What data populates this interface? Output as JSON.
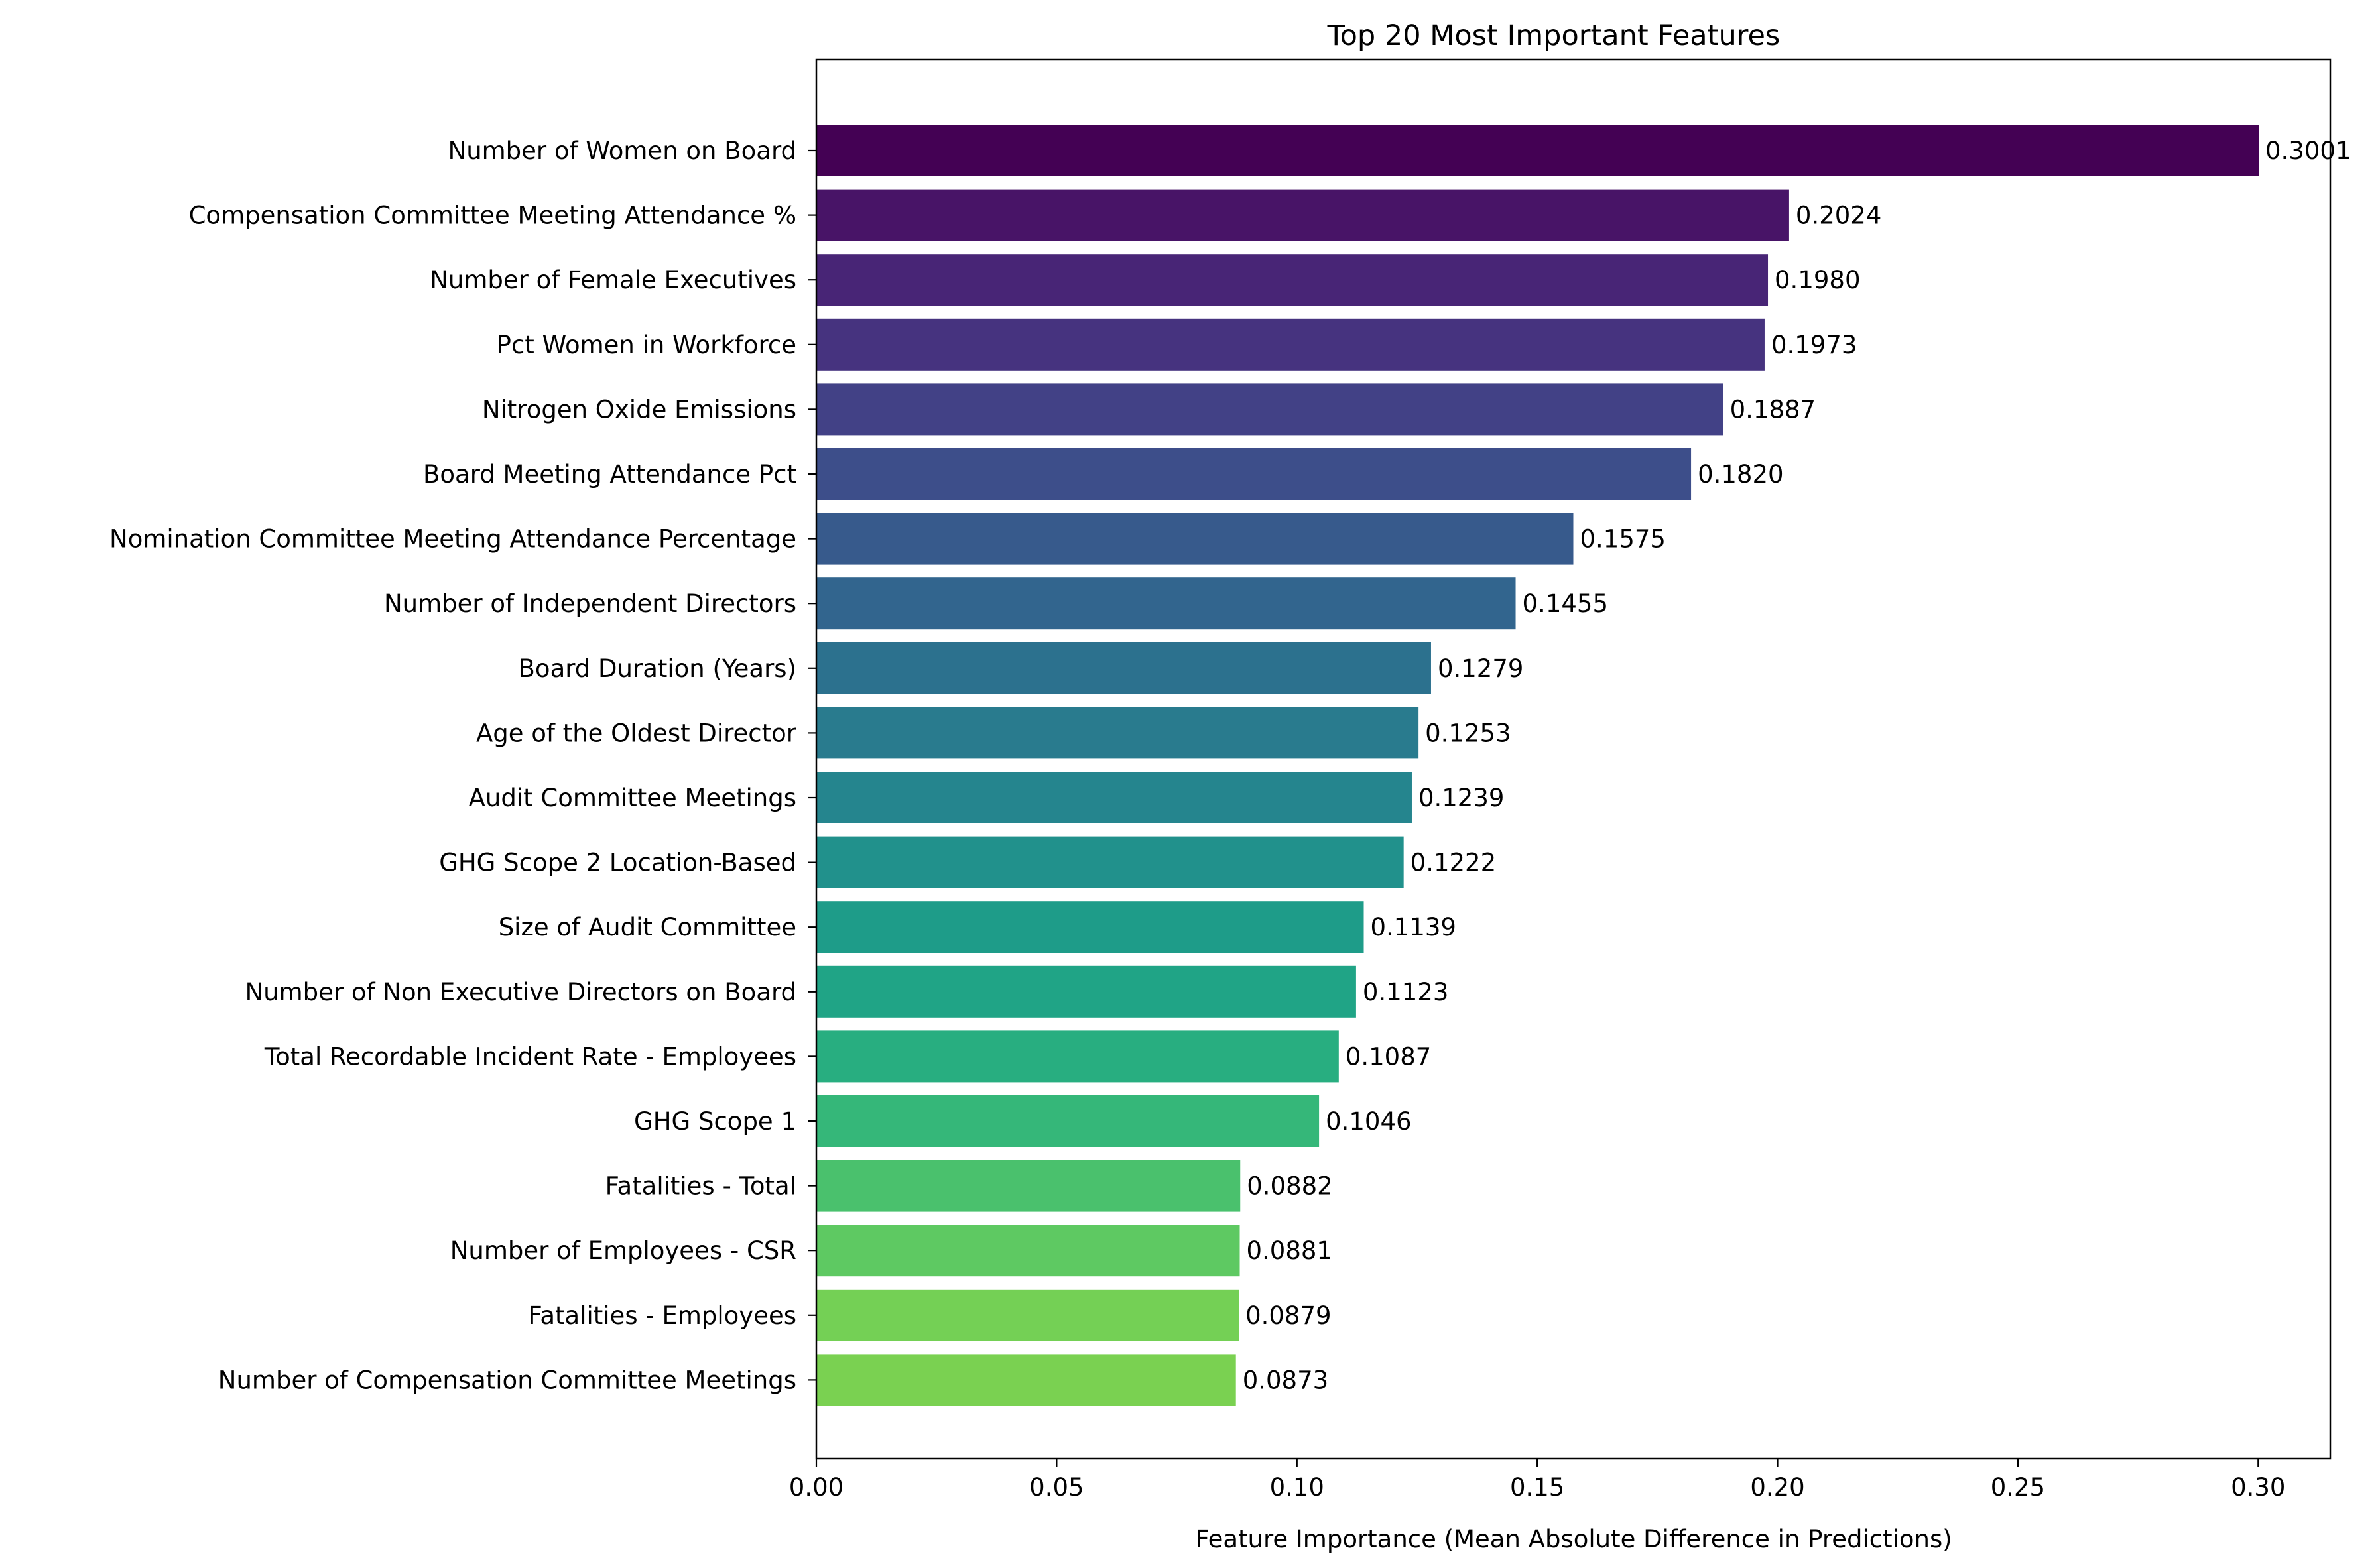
{
  "chart_data": {
    "type": "bar",
    "orientation": "horizontal",
    "title": "Top 20 Most Important Features",
    "xlabel": "Feature Importance (Mean Absolute Difference in Predictions)",
    "ylabel": "",
    "xlim": [
      0,
      0.315
    ],
    "xticks": [
      0.0,
      0.05,
      0.1,
      0.15,
      0.2,
      0.25,
      0.3
    ],
    "xtick_labels": [
      "0.00",
      "0.05",
      "0.10",
      "0.15",
      "0.20",
      "0.25",
      "0.30"
    ],
    "grid": false,
    "colormap": "viridis",
    "categories": [
      "Number of Women on Board",
      "Compensation Committee Meeting Attendance %",
      "Number of Female Executives",
      "Pct Women in Workforce",
      "Nitrogen Oxide Emissions",
      "Board Meeting Attendance Pct",
      "Nomination Committee Meeting Attendance Percentage",
      "Number of Independent Directors",
      "Board Duration (Years)",
      "Age of the Oldest Director",
      "Audit Committee Meetings",
      "GHG Scope 2 Location-Based",
      "Size of Audit Committee",
      "Number of Non Executive Directors on Board",
      "Total Recordable Incident Rate - Employees",
      "GHG Scope 1",
      "Fatalities - Total",
      "Number of Employees - CSR",
      "Fatalities - Employees",
      "Number of Compensation Committee Meetings"
    ],
    "values": [
      0.3001,
      0.2024,
      0.198,
      0.1973,
      0.1887,
      0.182,
      0.1575,
      0.1455,
      0.1279,
      0.1253,
      0.1239,
      0.1222,
      0.1139,
      0.1123,
      0.1087,
      0.1046,
      0.0882,
      0.0881,
      0.0879,
      0.0873
    ],
    "value_labels": [
      "0.3001",
      "0.2024",
      "0.1980",
      "0.1973",
      "0.1887",
      "0.1820",
      "0.1575",
      "0.1455",
      "0.1279",
      "0.1253",
      "0.1239",
      "0.1222",
      "0.1139",
      "0.1123",
      "0.1087",
      "0.1046",
      "0.0882",
      "0.0881",
      "0.0879",
      "0.0873"
    ],
    "colors": [
      "#440154",
      "#481467",
      "#482576",
      "#46337f",
      "#424186",
      "#3d4e8a",
      "#375a8c",
      "#32658e",
      "#2c718e",
      "#297b8e",
      "#25858e",
      "#21918c",
      "#1e9c89",
      "#20a486",
      "#28ae80",
      "#35b779",
      "#4ac16d",
      "#5ec962",
      "#74d055",
      "#7ad151"
    ]
  }
}
